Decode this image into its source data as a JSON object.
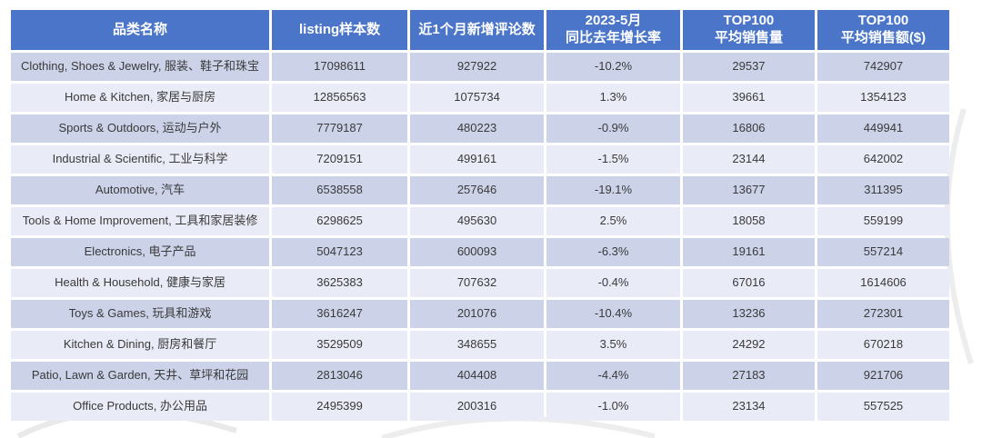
{
  "colors": {
    "header_bg": "#4a75c8",
    "header_text": "#ffffff",
    "row_odd_bg": "#ccd3e9",
    "row_even_bg": "#e9ebf6",
    "body_text": "#3a3a3a",
    "gap": "#ffffff"
  },
  "table": {
    "columns": [
      "品类名称",
      "listing样本数",
      "近1个月新增评论数",
      "2023-5月\n同比去年增长率",
      "TOP100\n平均销售量",
      "TOP100\n平均销售额($)"
    ],
    "rows": [
      [
        "Clothing, Shoes & Jewelry, 服装、鞋子和珠宝",
        "17098611",
        "927922",
        "-10.2%",
        "29537",
        "742907"
      ],
      [
        "Home & Kitchen, 家居与厨房",
        "12856563",
        "1075734",
        "1.3%",
        "39661",
        "1354123"
      ],
      [
        "Sports & Outdoors, 运动与户外",
        "7779187",
        "480223",
        "-0.9%",
        "16806",
        "449941"
      ],
      [
        "Industrial & Scientific, 工业与科学",
        "7209151",
        "499161",
        "-1.5%",
        "23144",
        "642002"
      ],
      [
        "Automotive, 汽车",
        "6538558",
        "257646",
        "-19.1%",
        "13677",
        "311395"
      ],
      [
        "Tools & Home Improvement, 工具和家居装修",
        "6298625",
        "495630",
        "2.5%",
        "18058",
        "559199"
      ],
      [
        "Electronics, 电子产品",
        "5047123",
        "600093",
        "-6.3%",
        "19161",
        "557214"
      ],
      [
        "Health & Household, 健康与家居",
        "3625383",
        "707632",
        "-0.4%",
        "67016",
        "1614606"
      ],
      [
        "Toys & Games, 玩具和游戏",
        "3616247",
        "201076",
        "-10.4%",
        "13236",
        "272301"
      ],
      [
        "Kitchen & Dining, 厨房和餐厅",
        "3529509",
        "348655",
        "3.5%",
        "24292",
        "670218"
      ],
      [
        "Patio, Lawn & Garden, 天井、草坪和花园",
        "2813046",
        "404408",
        "-4.4%",
        "27183",
        "921706"
      ],
      [
        "Office Products, 办公用品",
        "2495399",
        "200316",
        "-1.0%",
        "23134",
        "557525"
      ]
    ]
  },
  "chart_data": {
    "type": "table",
    "title": "",
    "columns": [
      "品类名称",
      "listing样本数",
      "近1个月新增评论数",
      "2023-5月 同比去年增长率",
      "TOP100 平均销售量",
      "TOP100 平均销售额($)"
    ],
    "rows": [
      {
        "category": "Clothing, Shoes & Jewelry, 服装、鞋子和珠宝",
        "listing_samples": 17098611,
        "new_reviews_1mo": 927922,
        "yoy_growth_2023_may": "-10.2%",
        "top100_avg_sales_volume": 29537,
        "top100_avg_sales_amount_usd": 742907
      },
      {
        "category": "Home & Kitchen, 家居与厨房",
        "listing_samples": 12856563,
        "new_reviews_1mo": 1075734,
        "yoy_growth_2023_may": "1.3%",
        "top100_avg_sales_volume": 39661,
        "top100_avg_sales_amount_usd": 1354123
      },
      {
        "category": "Sports & Outdoors, 运动与户外",
        "listing_samples": 7779187,
        "new_reviews_1mo": 480223,
        "yoy_growth_2023_may": "-0.9%",
        "top100_avg_sales_volume": 16806,
        "top100_avg_sales_amount_usd": 449941
      },
      {
        "category": "Industrial & Scientific, 工业与科学",
        "listing_samples": 7209151,
        "new_reviews_1mo": 499161,
        "yoy_growth_2023_may": "-1.5%",
        "top100_avg_sales_volume": 23144,
        "top100_avg_sales_amount_usd": 642002
      },
      {
        "category": "Automotive, 汽车",
        "listing_samples": 6538558,
        "new_reviews_1mo": 257646,
        "yoy_growth_2023_may": "-19.1%",
        "top100_avg_sales_volume": 13677,
        "top100_avg_sales_amount_usd": 311395
      },
      {
        "category": "Tools & Home Improvement, 工具和家居装修",
        "listing_samples": 6298625,
        "new_reviews_1mo": 495630,
        "yoy_growth_2023_may": "2.5%",
        "top100_avg_sales_volume": 18058,
        "top100_avg_sales_amount_usd": 559199
      },
      {
        "category": "Electronics, 电子产品",
        "listing_samples": 5047123,
        "new_reviews_1mo": 600093,
        "yoy_growth_2023_may": "-6.3%",
        "top100_avg_sales_volume": 19161,
        "top100_avg_sales_amount_usd": 557214
      },
      {
        "category": "Health & Household, 健康与家居",
        "listing_samples": 3625383,
        "new_reviews_1mo": 707632,
        "yoy_growth_2023_may": "-0.4%",
        "top100_avg_sales_volume": 67016,
        "top100_avg_sales_amount_usd": 1614606
      },
      {
        "category": "Toys & Games, 玩具和游戏",
        "listing_samples": 3616247,
        "new_reviews_1mo": 201076,
        "yoy_growth_2023_may": "-10.4%",
        "top100_avg_sales_volume": 13236,
        "top100_avg_sales_amount_usd": 272301
      },
      {
        "category": "Kitchen & Dining, 厨房和餐厅",
        "listing_samples": 3529509,
        "new_reviews_1mo": 348655,
        "yoy_growth_2023_may": "3.5%",
        "top100_avg_sales_volume": 24292,
        "top100_avg_sales_amount_usd": 670218
      },
      {
        "category": "Patio, Lawn & Garden, 天井、草坪和花园",
        "listing_samples": 2813046,
        "new_reviews_1mo": 404408,
        "yoy_growth_2023_may": "-4.4%",
        "top100_avg_sales_volume": 27183,
        "top100_avg_sales_amount_usd": 921706
      },
      {
        "category": "Office Products, 办公用品",
        "listing_samples": 2495399,
        "new_reviews_1mo": 200316,
        "yoy_growth_2023_may": "-1.0%",
        "top100_avg_sales_volume": 23134,
        "top100_avg_sales_amount_usd": 557525
      }
    ]
  }
}
